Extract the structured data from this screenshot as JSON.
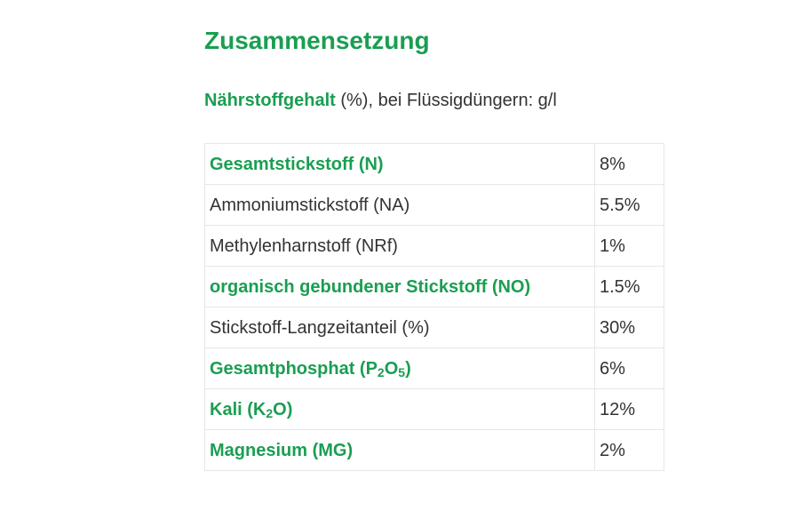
{
  "heading": "Zusammensetzung",
  "subheading": {
    "strong": "Nährstoffgehalt",
    "rest": " (%), bei Flüssigdüngern: g/l"
  },
  "rows": [
    {
      "label": "Gesamtstickstoff (N)",
      "value": "8%",
      "bold": true
    },
    {
      "label": "Ammoniumstickstoff (NA)",
      "value": "5.5%",
      "bold": false
    },
    {
      "label": "Methylenharnstoff (NRf)",
      "value": "1%",
      "bold": false
    },
    {
      "label": "organisch gebundener Stickstoff (NO)",
      "value": "1.5%",
      "bold": true
    },
    {
      "label": "Stickstoff-Langzeitanteil (%)",
      "value": "30%",
      "bold": false
    },
    {
      "label_pre": "Gesamtphosphat (P",
      "sub1": "2",
      "label_mid": "O",
      "sub2": "5",
      "label_post": ")",
      "value": "6%",
      "bold": true
    },
    {
      "label_pre": "Kali (K",
      "sub1": "2",
      "label_post": "O)",
      "value": "12%",
      "bold": true
    },
    {
      "label": "Magnesium (MG)",
      "value": "2%",
      "bold": true
    }
  ],
  "colors": {
    "accent_green": "#1a9e52",
    "text": "#333333",
    "border": "#e6e6e6"
  }
}
